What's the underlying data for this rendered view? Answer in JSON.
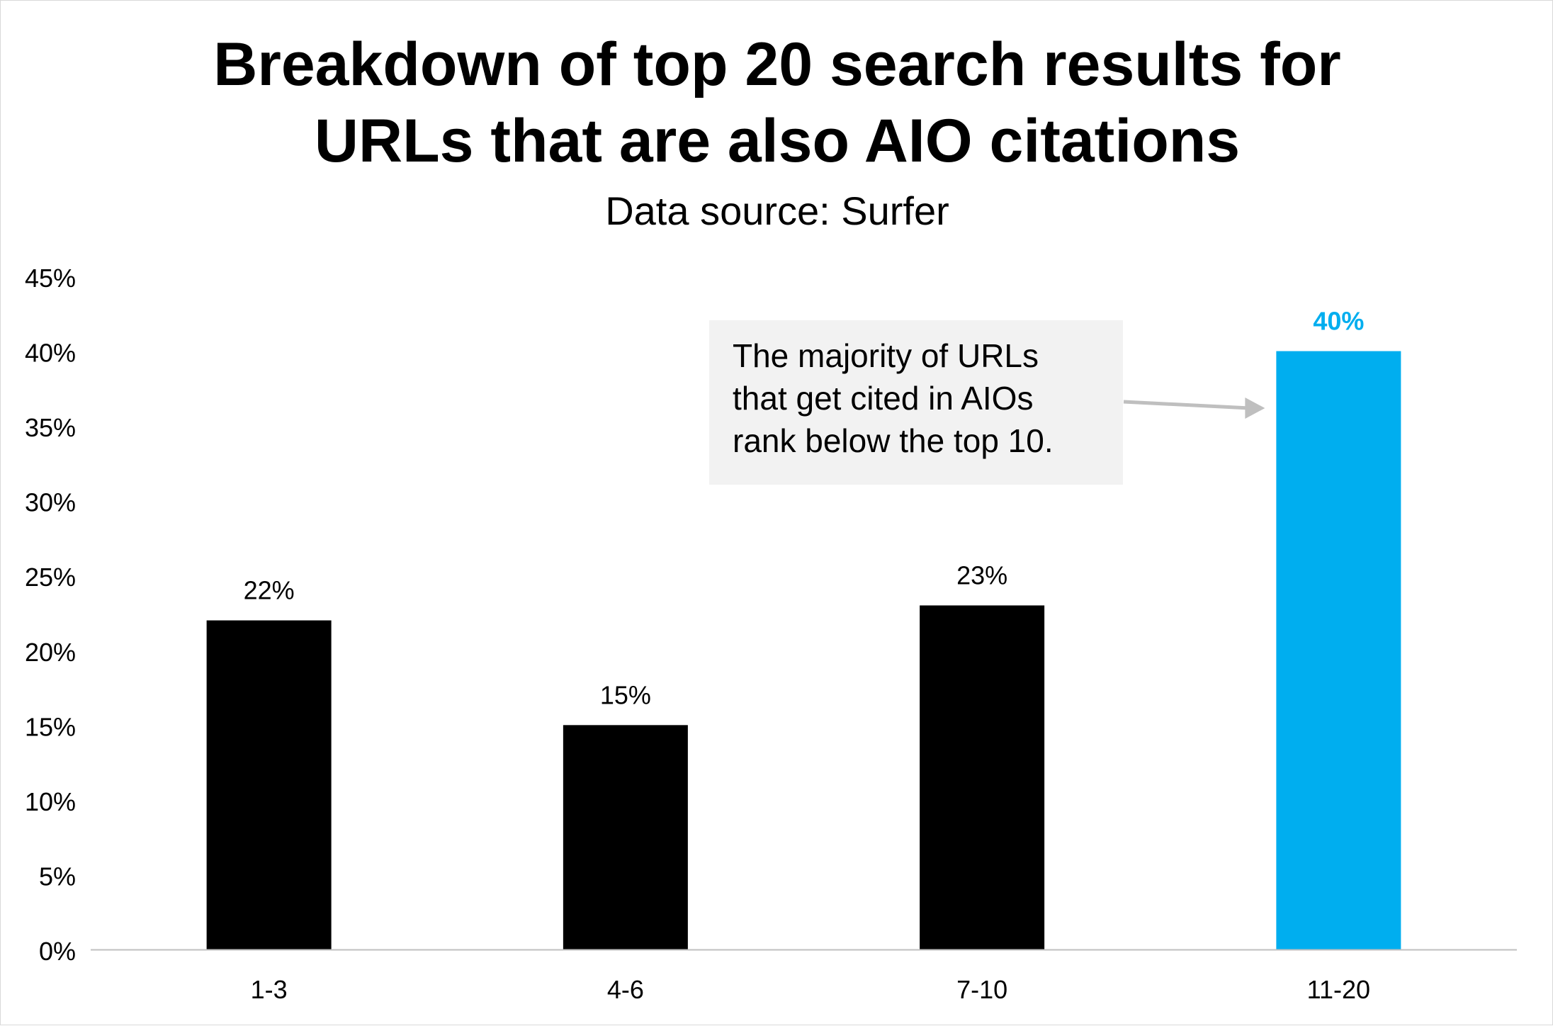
{
  "chart_data": {
    "type": "bar",
    "title": [
      "Breakdown of top 20 search results for",
      "URLs that are also AIO citations"
    ],
    "subtitle": "Data source: Surfer",
    "categories": [
      "1-3",
      "4-6",
      "7-10",
      "11-20"
    ],
    "values": [
      22,
      15,
      23,
      40
    ],
    "value_labels": [
      "22%",
      "15%",
      "23%",
      "40%"
    ],
    "highlight_index": 3,
    "ylim": [
      0,
      45
    ],
    "ytick_labels": [
      "0%",
      "5%",
      "10%",
      "15%",
      "20%",
      "25%",
      "30%",
      "35%",
      "40%",
      "45%"
    ],
    "xlabel": "",
    "ylabel": "",
    "grid": false,
    "annotation": {
      "lines": [
        "The majority of URLs",
        "that get cited in AIOs",
        "rank below the top 10."
      ],
      "points_to": "11-20"
    },
    "colors": {
      "bar": "#000000",
      "highlight": "#00aeef",
      "axis": "#bfbfbf",
      "arrow": "#bfbfbf",
      "callout_bg": "#f2f2f2"
    }
  }
}
